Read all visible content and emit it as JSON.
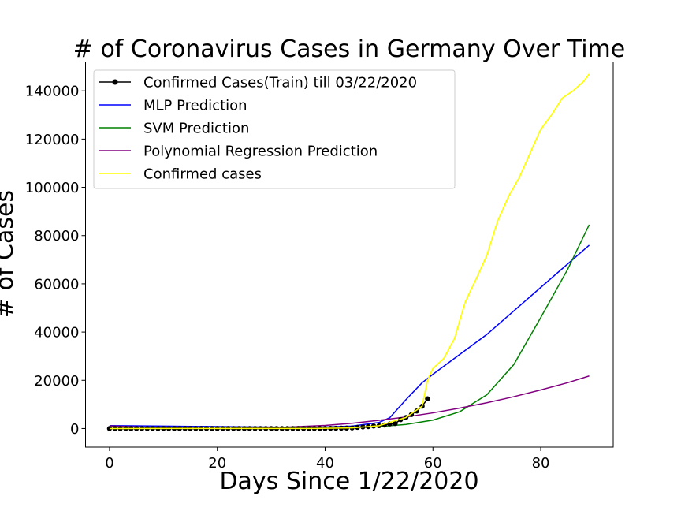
{
  "chart_data": {
    "type": "line",
    "title": "# of Coronavirus Cases in Germany Over Time",
    "xlabel": "Days Since 1/22/2020",
    "ylabel": "# of Cases",
    "xlim": [
      -4.45,
      93.45
    ],
    "ylim": [
      -7700,
      152000
    ],
    "x_ticks": [
      0,
      20,
      40,
      60,
      80
    ],
    "y_ticks": [
      0,
      20000,
      40000,
      60000,
      80000,
      100000,
      120000,
      140000
    ],
    "x_tick_labels": [
      "0",
      "20",
      "40",
      "60",
      "80"
    ],
    "y_tick_labels": [
      "0",
      "20000",
      "40000",
      "60000",
      "80000",
      "100000",
      "120000",
      "140000"
    ],
    "grid": false,
    "legend_position": "top-left",
    "series": [
      {
        "name": "Confirmed Cases(Train) till 03/22/2020",
        "color": "#000000",
        "marker": "circle",
        "x": [
          0,
          1,
          2,
          3,
          4,
          5,
          6,
          7,
          8,
          9,
          10,
          11,
          12,
          13,
          14,
          15,
          16,
          17,
          18,
          19,
          20,
          21,
          22,
          23,
          24,
          25,
          26,
          27,
          28,
          29,
          30,
          31,
          32,
          33,
          34,
          35,
          36,
          37,
          38,
          39,
          40,
          41,
          42,
          43,
          44,
          45,
          46,
          47,
          48,
          49,
          50,
          51,
          52,
          53,
          54,
          55,
          56,
          57,
          58,
          59
        ],
        "y": [
          0,
          0,
          0,
          0,
          0,
          1,
          4,
          4,
          4,
          5,
          8,
          10,
          12,
          12,
          12,
          12,
          13,
          13,
          14,
          14,
          16,
          16,
          16,
          16,
          16,
          16,
          16,
          16,
          16,
          16,
          16,
          16,
          16,
          16,
          16,
          16,
          16,
          16,
          18,
          26,
          48,
          79,
          130,
          159,
          196,
          262,
          482,
          670,
          799,
          1040,
          1176,
          1457,
          1908,
          2078,
          3675,
          4585,
          5795,
          7272,
          9257,
          12327
        ]
      },
      {
        "name": "MLP Prediction",
        "color": "#0000ff",
        "x": [
          0,
          10,
          20,
          30,
          38,
          45,
          50,
          52,
          55,
          58,
          60,
          70,
          80,
          89
        ],
        "y": [
          1200,
          1000,
          800,
          600,
          500,
          1000,
          2500,
          4500,
          12000,
          19000,
          22500,
          39000,
          58500,
          76000
        ]
      },
      {
        "name": "SVM Prediction",
        "color": "#008000",
        "x": [
          0,
          10,
          20,
          30,
          40,
          45,
          50,
          55,
          60,
          65,
          70,
          75,
          80,
          85,
          89
        ],
        "y": [
          0,
          0,
          0,
          20,
          120,
          330,
          800,
          1700,
          3500,
          7000,
          14000,
          26500,
          46000,
          66000,
          84500
        ]
      },
      {
        "name": "Polynomial Regression Prediction",
        "color": "#800080",
        "x": [
          0,
          10,
          20,
          30,
          40,
          45,
          50,
          55,
          60,
          65,
          70,
          75,
          80,
          85,
          89
        ],
        "y": [
          1100,
          300,
          0,
          300,
          1300,
          2200,
          3400,
          4800,
          6500,
          8500,
          10700,
          13200,
          16000,
          19000,
          21800
        ]
      },
      {
        "name": "Confirmed cases",
        "color": "#ffff00",
        "x": [
          0,
          10,
          20,
          30,
          38,
          45,
          50,
          55,
          58,
          59,
          60,
          62,
          64,
          66,
          68,
          70,
          72,
          74,
          76,
          78,
          80,
          82,
          84,
          86,
          88,
          89
        ],
        "y": [
          0,
          8,
          16,
          16,
          18,
          262,
          1176,
          4585,
          9257,
          20000,
          24900,
          29000,
          37300,
          52500,
          61900,
          71800,
          86000,
          96100,
          104000,
          114000,
          124000,
          130000,
          137000,
          140000,
          144000,
          147000
        ]
      }
    ]
  }
}
